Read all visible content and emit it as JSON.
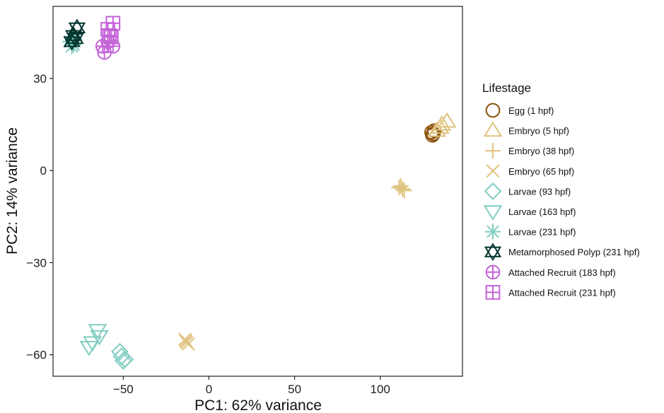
{
  "chart_data": {
    "type": "scatter",
    "title": "",
    "xlabel": "PC1: 62% variance",
    "ylabel": "PC2: 14% variance",
    "xlim": [
      -91,
      148
    ],
    "ylim": [
      -67,
      53.5
    ],
    "xticks": [
      -50,
      0,
      50,
      100
    ],
    "yticks": [
      -60,
      -30,
      0,
      30
    ],
    "xtick_labels": [
      "−50",
      "0",
      "50",
      "100"
    ],
    "ytick_labels": [
      "−60",
      "−30",
      "0",
      "30"
    ],
    "grid": false,
    "legend": {
      "title": "Lifestage",
      "position": "right"
    },
    "series": [
      {
        "name": "Egg (1 hpf)",
        "color": "#8C510A",
        "shape": "circle",
        "points": [
          [
            130,
            12.5
          ],
          [
            131,
            12
          ],
          [
            130.5,
            11.5
          ],
          [
            131.5,
            13
          ]
        ]
      },
      {
        "name": "Embryo (5 hpf)",
        "color": "#DFC27D",
        "shape": "triangle-up",
        "points": [
          [
            139,
            16
          ],
          [
            135,
            14
          ],
          [
            133,
            13
          ],
          [
            136,
            15
          ]
        ]
      },
      {
        "name": "Embryo (38 hpf)",
        "color": "#DFC27D",
        "shape": "plus",
        "points": [
          [
            111,
            -5.5
          ],
          [
            113,
            -6
          ],
          [
            112,
            -5
          ],
          [
            114,
            -6.5
          ]
        ]
      },
      {
        "name": "Embryo (65 hpf)",
        "color": "#DFC27D",
        "shape": "cross",
        "points": [
          [
            -13,
            -56
          ],
          [
            -14,
            -55
          ],
          [
            -12,
            -56.5
          ],
          [
            -13.5,
            -55.5
          ]
        ]
      },
      {
        "name": "Larvae (93 hpf)",
        "color": "#80CDC1",
        "shape": "diamond",
        "points": [
          [
            -52,
            -59
          ],
          [
            -51,
            -60.5
          ],
          [
            -50,
            -62
          ],
          [
            -49,
            -61.5
          ]
        ]
      },
      {
        "name": "Larvae (163 hpf)",
        "color": "#80CDC1",
        "shape": "triangle-down",
        "points": [
          [
            -65,
            -52
          ],
          [
            -68,
            -56
          ],
          [
            -64,
            -54
          ],
          [
            -70,
            -57.5
          ]
        ]
      },
      {
        "name": "Larvae (231 hpf)",
        "color": "#80CDC1",
        "shape": "asterisk",
        "points": [
          [
            -80,
            40.5
          ],
          [
            -81,
            42
          ],
          [
            -79,
            41
          ],
          [
            -78.5,
            43
          ]
        ]
      },
      {
        "name": "Metamorphosed Polyp (231 hpf)",
        "color": "#01362E",
        "shape": "star-of-david",
        "points": [
          [
            -77,
            46.5
          ],
          [
            -79,
            44
          ],
          [
            -80,
            42
          ],
          [
            -78,
            43
          ]
        ]
      },
      {
        "name": "Attached Recruit (183 hpf)",
        "color": "#C463D8",
        "shape": "circle-plus",
        "points": [
          [
            -59,
            42
          ],
          [
            -62,
            40.5
          ],
          [
            -56,
            40.5
          ],
          [
            -61,
            38.5
          ]
        ]
      },
      {
        "name": "Attached Recruit (231 hpf)",
        "color": "#C463D8",
        "shape": "square-plus",
        "points": [
          [
            -56,
            48
          ],
          [
            -59,
            46
          ],
          [
            -58,
            44
          ],
          [
            -57,
            43.5
          ]
        ]
      }
    ]
  }
}
